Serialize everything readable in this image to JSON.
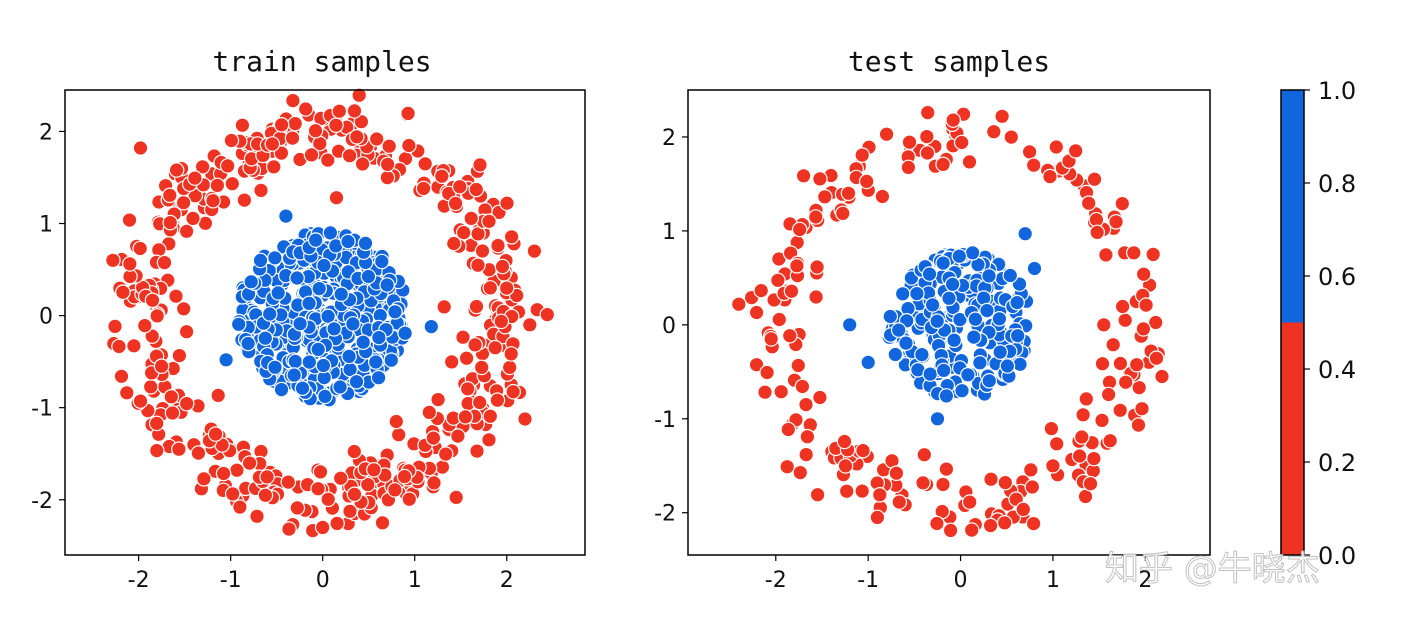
{
  "colors": {
    "class_0": "#EE3322",
    "class_1": "#1166DD",
    "edge": "#ffffff"
  },
  "chart_data": [
    {
      "type": "scatter",
      "title": "train samples",
      "xlim": [
        -2.8,
        2.85
      ],
      "ylim": [
        -2.6,
        2.45
      ],
      "xticks": [
        "-2",
        "-1",
        "0",
        "1",
        "2"
      ],
      "xtick_values": [
        -2,
        -1,
        0,
        1,
        2
      ],
      "yticks": [
        "2",
        "1",
        "0",
        "-1",
        "-2"
      ],
      "ytick_values": [
        2,
        1,
        0,
        -1,
        -2
      ],
      "grid": false,
      "series": [
        {
          "label": 0,
          "color": "#EE3322",
          "distribution": "ring",
          "r_center": 1.95,
          "r_spread": 0.18,
          "count": 480,
          "outliers": [
            [
              -1.98,
              1.82
            ],
            [
              0.18,
              2.22
            ],
            [
              -2.28,
              0.6
            ],
            [
              2.3,
              0.7
            ],
            [
              2.25,
              -0.1
            ],
            [
              -1.75,
              -0.55
            ],
            [
              0.0,
              -2.3
            ],
            [
              -0.9,
              -2.08
            ],
            [
              0.65,
              -2.25
            ],
            [
              1.55,
              -1.1
            ],
            [
              0.8,
              -1.15
            ],
            [
              0.15,
              1.28
            ]
          ]
        },
        {
          "label": 1,
          "color": "#1166DD",
          "distribution": "disk",
          "r_max": 1.0,
          "count": 480,
          "outliers": [
            [
              -1.05,
              -0.48
            ],
            [
              1.18,
              -0.12
            ],
            [
              -0.4,
              1.08
            ]
          ]
        }
      ]
    },
    {
      "type": "scatter",
      "title": "test samples",
      "xlim": [
        -2.95,
        2.7
      ],
      "ylim": [
        -2.45,
        2.5
      ],
      "xticks": [
        "-2",
        "-1",
        "0",
        "1",
        "2"
      ],
      "xtick_values": [
        -2,
        -1,
        0,
        1,
        2
      ],
      "yticks": [
        "2",
        "1",
        "0",
        "-1",
        "-2"
      ],
      "ytick_values": [
        2,
        1,
        0,
        -1,
        -2
      ],
      "grid": false,
      "series": [
        {
          "label": 0,
          "color": "#EE3322",
          "distribution": "ring",
          "r_center": 1.95,
          "r_spread": 0.18,
          "count": 230,
          "outliers": [
            [
              -2.4,
              0.22
            ],
            [
              0.45,
              2.22
            ],
            [
              -0.08,
              2.18
            ],
            [
              -0.8,
              2.03
            ],
            [
              2.18,
              -0.55
            ],
            [
              -2.05,
              -0.15
            ],
            [
              1.55,
              0.0
            ],
            [
              -0.9,
              -2.05
            ],
            [
              1.0,
              -1.5
            ]
          ]
        },
        {
          "label": 1,
          "color": "#1166DD",
          "distribution": "disk",
          "r_max": 0.85,
          "count": 230,
          "outliers": [
            [
              -1.2,
              0.0
            ],
            [
              -1.0,
              -0.4
            ],
            [
              0.8,
              0.6
            ],
            [
              -0.25,
              -1.0
            ],
            [
              0.7,
              0.97
            ]
          ]
        }
      ]
    }
  ],
  "colorbar": {
    "range": [
      0.0,
      1.0
    ],
    "ticks": [
      "1.0",
      "0.8",
      "0.6",
      "0.4",
      "0.2",
      "0.0"
    ],
    "tick_values": [
      1.0,
      0.8,
      0.6,
      0.4,
      0.2,
      0.0
    ],
    "segments": [
      {
        "from": 0.0,
        "to": 0.5,
        "color": "#EE3322"
      },
      {
        "from": 0.5,
        "to": 1.0,
        "color": "#1166DD"
      }
    ]
  },
  "watermark": "知乎 @牛晓杰"
}
